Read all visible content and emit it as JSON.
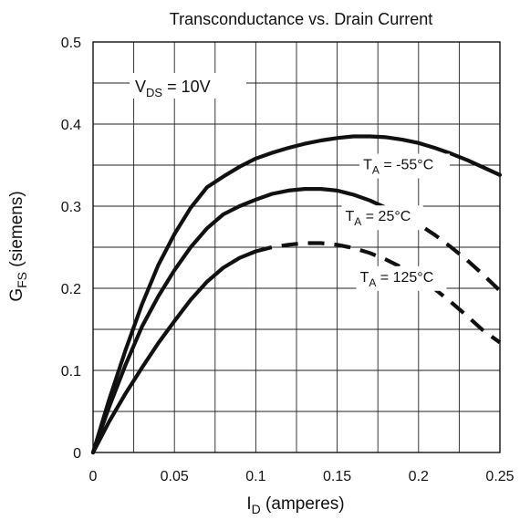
{
  "chart_data": {
    "type": "line",
    "title": "Transconductance vs. Drain Current",
    "xlabel": {
      "main": "I",
      "sub": "D",
      "rest": " (amperes)"
    },
    "ylabel": {
      "main": "G",
      "sub": "FS",
      "rest": " (siemens)"
    },
    "xlim": [
      0,
      0.25
    ],
    "ylim": [
      0,
      0.5
    ],
    "x_ticks": [
      0,
      0.05,
      0.1,
      0.15,
      0.2,
      0.25
    ],
    "x_tick_labels": [
      "0",
      "0.05",
      "0.1",
      "0.15",
      "0.2",
      "0.25"
    ],
    "y_ticks": [
      0,
      0.1,
      0.2,
      0.3,
      0.4,
      0.5
    ],
    "y_tick_labels": [
      "0",
      "0.1",
      "0.2",
      "0.3",
      "0.4",
      "0.5"
    ],
    "grid": true,
    "condition_label": {
      "main": "V",
      "sub": "DS",
      "rest": " = 10V"
    },
    "series": [
      {
        "name": "T_A = -55°C",
        "label": {
          "main": "T",
          "sub": "A",
          "rest": " = -55°C"
        },
        "style": "solid",
        "points": [
          [
            0,
            0
          ],
          [
            0.01,
            0.065
          ],
          [
            0.02,
            0.125
          ],
          [
            0.03,
            0.18
          ],
          [
            0.04,
            0.228
          ],
          [
            0.05,
            0.266
          ],
          [
            0.06,
            0.298
          ],
          [
            0.07,
            0.323
          ],
          [
            0.08,
            0.336
          ],
          [
            0.09,
            0.348
          ],
          [
            0.1,
            0.358
          ],
          [
            0.11,
            0.365
          ],
          [
            0.12,
            0.371
          ],
          [
            0.13,
            0.376
          ],
          [
            0.14,
            0.38
          ],
          [
            0.15,
            0.383
          ],
          [
            0.16,
            0.385
          ],
          [
            0.17,
            0.385
          ],
          [
            0.18,
            0.384
          ],
          [
            0.19,
            0.381
          ],
          [
            0.2,
            0.377
          ],
          [
            0.21,
            0.371
          ],
          [
            0.22,
            0.364
          ],
          [
            0.23,
            0.356
          ],
          [
            0.24,
            0.347
          ],
          [
            0.25,
            0.338
          ]
        ]
      },
      {
        "name": "T_A = 25°C",
        "label": {
          "main": "T",
          "sub": "A",
          "rest": " = 25°C"
        },
        "style": "solid",
        "dashed_from_x": 0.19,
        "points": [
          [
            0,
            0
          ],
          [
            0.01,
            0.056
          ],
          [
            0.02,
            0.107
          ],
          [
            0.03,
            0.153
          ],
          [
            0.04,
            0.19
          ],
          [
            0.05,
            0.222
          ],
          [
            0.06,
            0.25
          ],
          [
            0.07,
            0.273
          ],
          [
            0.08,
            0.29
          ],
          [
            0.09,
            0.3
          ],
          [
            0.1,
            0.308
          ],
          [
            0.11,
            0.315
          ],
          [
            0.12,
            0.319
          ],
          [
            0.13,
            0.321
          ],
          [
            0.14,
            0.321
          ],
          [
            0.15,
            0.319
          ],
          [
            0.16,
            0.314
          ],
          [
            0.17,
            0.307
          ],
          [
            0.18,
            0.298
          ],
          [
            0.19,
            0.289
          ],
          [
            0.2,
            0.278
          ],
          [
            0.21,
            0.265
          ],
          [
            0.22,
            0.25
          ],
          [
            0.23,
            0.234
          ],
          [
            0.24,
            0.216
          ],
          [
            0.25,
            0.197
          ]
        ]
      },
      {
        "name": "T_A = 125°C",
        "label": {
          "main": "T",
          "sub": "A",
          "rest": " = 125°C"
        },
        "style": "solid",
        "dashed_from_x": 0.1,
        "points": [
          [
            0,
            0
          ],
          [
            0.01,
            0.038
          ],
          [
            0.02,
            0.072
          ],
          [
            0.03,
            0.103
          ],
          [
            0.04,
            0.133
          ],
          [
            0.05,
            0.16
          ],
          [
            0.06,
            0.186
          ],
          [
            0.07,
            0.208
          ],
          [
            0.08,
            0.225
          ],
          [
            0.09,
            0.237
          ],
          [
            0.1,
            0.245
          ],
          [
            0.11,
            0.25
          ],
          [
            0.12,
            0.253
          ],
          [
            0.13,
            0.255
          ],
          [
            0.14,
            0.255
          ],
          [
            0.15,
            0.253
          ],
          [
            0.16,
            0.249
          ],
          [
            0.17,
            0.243
          ],
          [
            0.18,
            0.235
          ],
          [
            0.19,
            0.225
          ],
          [
            0.2,
            0.213
          ],
          [
            0.21,
            0.199
          ],
          [
            0.22,
            0.183
          ],
          [
            0.23,
            0.166
          ],
          [
            0.24,
            0.148
          ],
          [
            0.25,
            0.134
          ]
        ]
      }
    ]
  }
}
